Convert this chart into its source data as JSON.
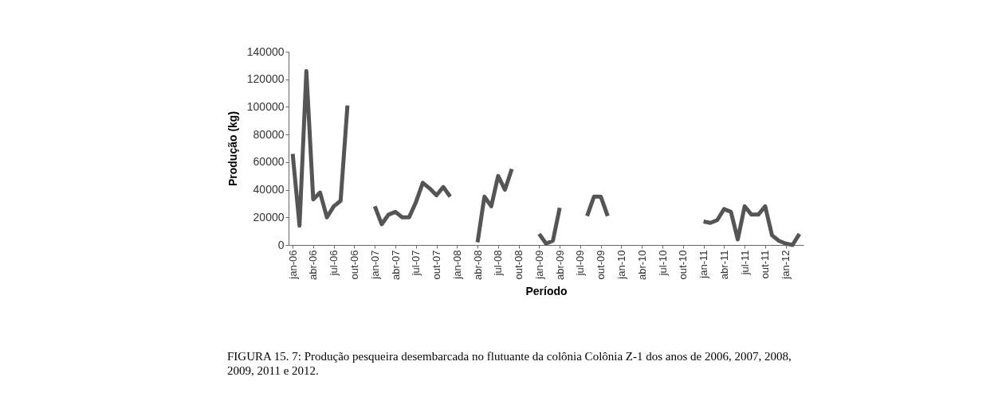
{
  "chart_data": {
    "type": "line",
    "xlabel": "Período",
    "ylabel": "Produção (kg)",
    "categories": [
      "jan-06",
      null,
      null,
      "abr-06",
      null,
      null,
      "jul-06",
      null,
      null,
      "out-06",
      null,
      null,
      "jan-07",
      null,
      null,
      "abr-07",
      null,
      null,
      "jul-07",
      null,
      null,
      "out-07",
      null,
      null,
      "jan-08",
      null,
      null,
      "abr-08",
      null,
      null,
      "jul-08",
      null,
      null,
      "out-08",
      null,
      null,
      "jan-09",
      null,
      null,
      "abr-09",
      null,
      null,
      "jul-09",
      null,
      null,
      "out-09",
      null,
      null,
      "jan-10",
      null,
      null,
      "abr-10",
      null,
      null,
      "jul-10",
      null,
      null,
      "out-10",
      null,
      null,
      "jan-11",
      null,
      null,
      "abr-11",
      null,
      null,
      "jul-11",
      null,
      null,
      "out-11",
      null,
      null,
      "jan-12",
      null,
      null
    ],
    "series": [
      {
        "color": "#555555",
        "values": [
          66000,
          14000,
          126000,
          33000,
          38000,
          20000,
          28000,
          32000,
          101000,
          null,
          null,
          null,
          28000,
          15000,
          22000,
          24000,
          20000,
          20000,
          31000,
          45000,
          41000,
          36000,
          42000,
          35000,
          null,
          null,
          null,
          2000,
          35000,
          28000,
          50000,
          40000,
          55000,
          null,
          null,
          null,
          8000,
          1000,
          3000,
          27000,
          null,
          null,
          null,
          21000,
          35000,
          35000,
          21000,
          null,
          null,
          null,
          null,
          null,
          null,
          null,
          null,
          null,
          null,
          null,
          null,
          null,
          17000,
          16000,
          18000,
          26000,
          24000,
          4000,
          28000,
          22000,
          22000,
          28000,
          7000,
          3000,
          1000,
          0,
          8000
        ]
      }
    ],
    "ylim": [
      0,
      140000
    ],
    "yticks": [
      0,
      20000,
      40000,
      60000,
      80000,
      100000,
      120000,
      140000
    ],
    "annotations": [
      "FIGURA 15. 7: Produção pesqueira desembarcada no flutuante da colônia Colônia Z-1 dos anos de 2006, 2007, 2008, 2009, 2011 e 2012."
    ]
  }
}
